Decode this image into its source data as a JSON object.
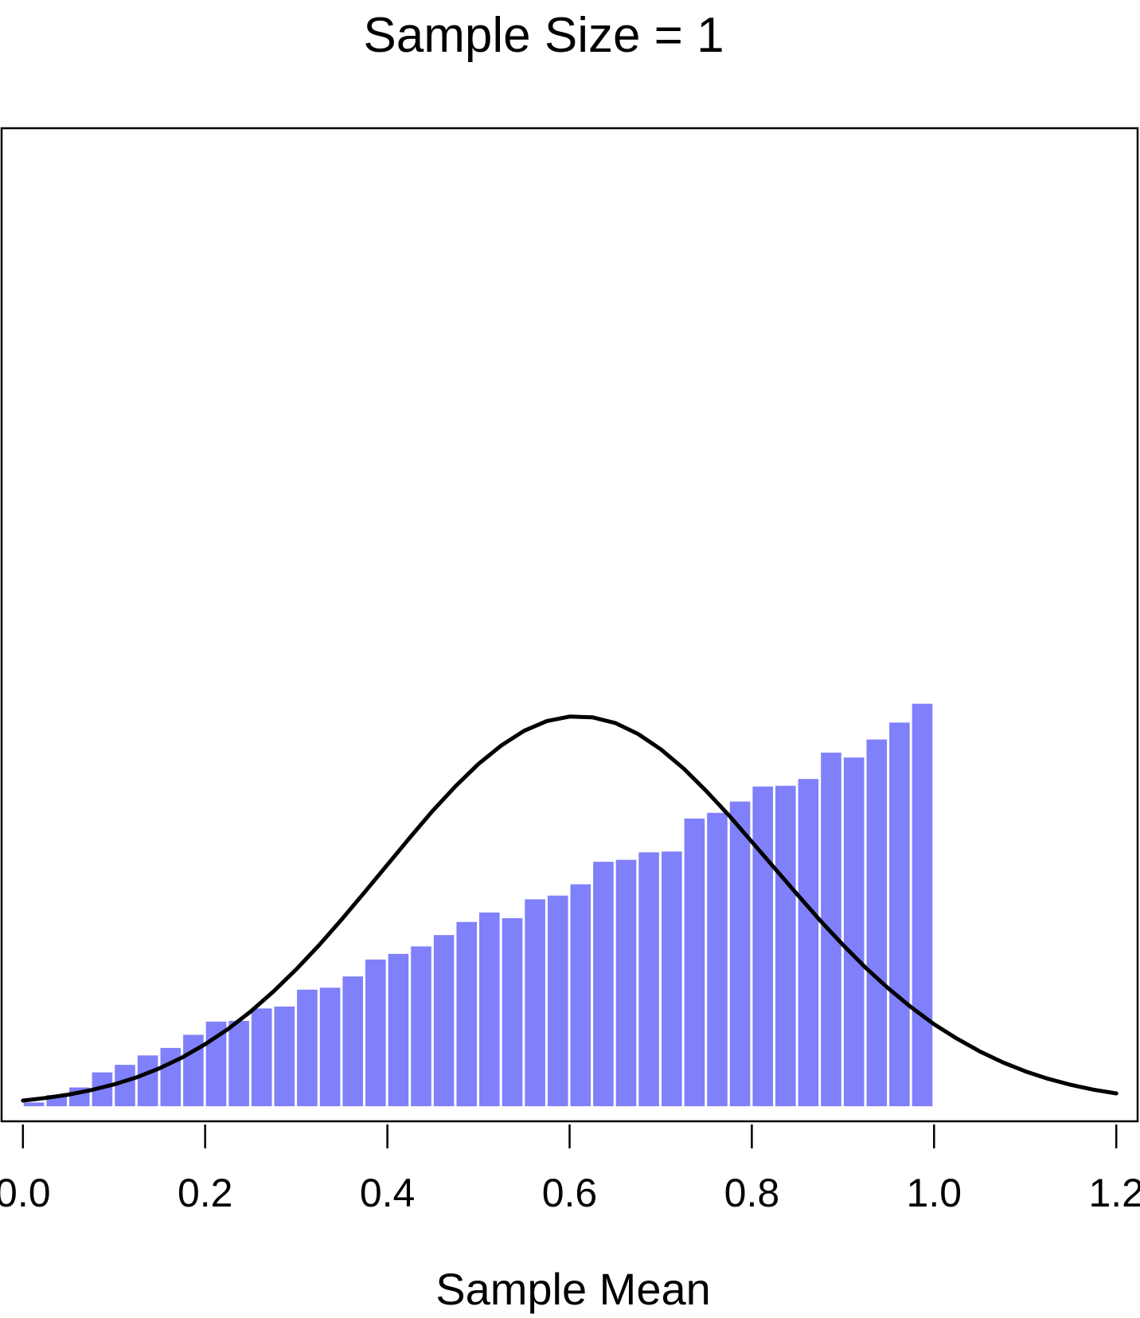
{
  "chart_data": {
    "type": "bar",
    "title": "Sample Size = 1",
    "xlabel": "Sample Mean",
    "ylabel": "",
    "xlim": [
      -0.0234,
      1.2234
    ],
    "ylim": [
      -0.04,
      2.6
    ],
    "xticks": [
      0.0,
      0.2,
      0.4,
      0.6,
      0.8,
      1.0,
      1.2
    ],
    "xtick_labels": [
      "0.0",
      "0.2",
      "0.4",
      "0.6",
      "0.8",
      "1.0",
      "1.2"
    ],
    "grid": false,
    "bar_color": "#8080fa",
    "curve_color": "#000000",
    "bin_width": 0.025,
    "bin_starts": [
      0.0,
      0.025,
      0.05,
      0.075,
      0.1,
      0.125,
      0.15,
      0.175,
      0.2,
      0.225,
      0.25,
      0.275,
      0.3,
      0.325,
      0.35,
      0.375,
      0.4,
      0.425,
      0.45,
      0.475,
      0.5,
      0.525,
      0.55,
      0.575,
      0.6,
      0.625,
      0.65,
      0.675,
      0.7,
      0.725,
      0.75,
      0.775,
      0.8,
      0.825,
      0.85,
      0.875,
      0.9,
      0.925,
      0.95,
      0.975
    ],
    "values": [
      0.01,
      0.03,
      0.05,
      0.09,
      0.11,
      0.135,
      0.155,
      0.19,
      0.225,
      0.227,
      0.26,
      0.265,
      0.31,
      0.315,
      0.345,
      0.39,
      0.405,
      0.425,
      0.455,
      0.49,
      0.515,
      0.5,
      0.55,
      0.56,
      0.59,
      0.65,
      0.655,
      0.675,
      0.677,
      0.765,
      0.78,
      0.81,
      0.85,
      0.852,
      0.87,
      0.94,
      0.927,
      0.975,
      1.02,
      1.07
    ],
    "curve": {
      "label": "",
      "x": [
        0.0,
        0.025,
        0.05,
        0.075,
        0.1,
        0.125,
        0.15,
        0.175,
        0.2,
        0.225,
        0.25,
        0.275,
        0.3,
        0.325,
        0.35,
        0.375,
        0.4,
        0.425,
        0.45,
        0.475,
        0.5,
        0.525,
        0.55,
        0.575,
        0.6,
        0.625,
        0.65,
        0.675,
        0.7,
        0.725,
        0.75,
        0.775,
        0.8,
        0.825,
        0.85,
        0.875,
        0.9,
        0.925,
        0.95,
        0.975,
        1.0,
        1.025,
        1.05,
        1.075,
        1.1,
        1.125,
        1.15,
        1.175,
        1.2
      ],
      "y": [
        0.015,
        0.022,
        0.031,
        0.043,
        0.058,
        0.077,
        0.101,
        0.13,
        0.165,
        0.205,
        0.252,
        0.305,
        0.364,
        0.428,
        0.497,
        0.569,
        0.642,
        0.715,
        0.786,
        0.851,
        0.91,
        0.959,
        0.998,
        1.024,
        1.036,
        1.034,
        1.019,
        0.99,
        0.949,
        0.898,
        0.838,
        0.773,
        0.703,
        0.633,
        0.563,
        0.494,
        0.429,
        0.368,
        0.313,
        0.263,
        0.218,
        0.18,
        0.146,
        0.117,
        0.093,
        0.073,
        0.057,
        0.044,
        0.034
      ]
    }
  }
}
